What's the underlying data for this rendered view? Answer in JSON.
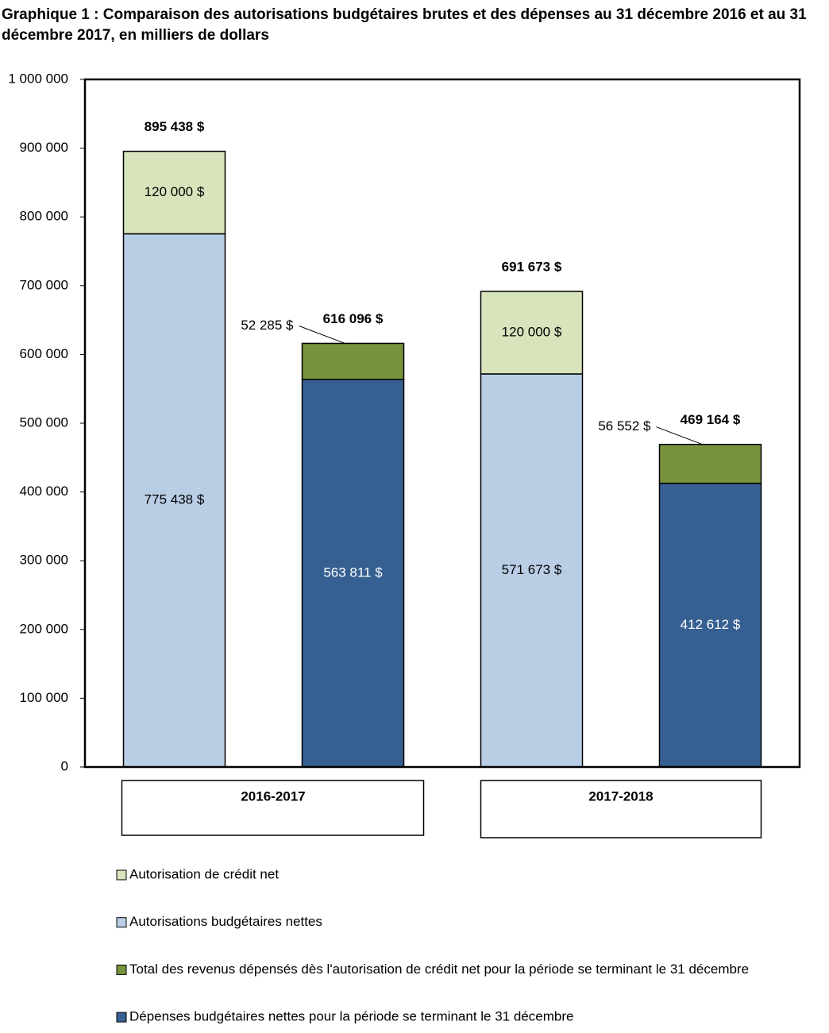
{
  "chart_data": {
    "type": "stacked-bar",
    "title": "Graphique 1 : Comparaison des autorisations budgétaires brutes et des dépenses au 31 décembre 2016 et au 31 décembre 2017, en milliers de dollars",
    "categories": [
      null,
      null,
      null,
      null
    ],
    "groups": [
      "2016-2017",
      "2017-2018"
    ],
    "series": [
      {
        "name": "Autorisation de crédit net",
        "color": "#d8e4bc",
        "values": [
          120000,
          null,
          120000,
          null
        ],
        "value_labels": [
          "120 000 $",
          null,
          "120 000 $",
          null
        ]
      },
      {
        "name": "Autorisations budgétaires nettes",
        "color": "#b9cde5",
        "values": [
          775438,
          null,
          571673,
          null
        ],
        "value_labels": [
          "775 438 $",
          null,
          "571 673 $",
          null
        ]
      },
      {
        "name": "Total des revenus dépensés dès l'autorisation de crédit net pour la période se terminant le 31 décembre",
        "color": "#77933c",
        "values": [
          null,
          52285,
          null,
          56552
        ],
        "value_labels": [
          null,
          "52 285 $",
          null,
          "56 552 $"
        ]
      },
      {
        "name": "Dépenses budgétaires nettes pour la période se terminant le 31 décembre",
        "color": "#376092",
        "values": [
          null,
          563811,
          null,
          412612
        ],
        "value_labels": [
          null,
          "563 811 $",
          null,
          "412 612 $"
        ]
      }
    ],
    "totals": [
      895438,
      616096,
      691673,
      469164
    ],
    "total_labels": [
      "895 438 $",
      "616 096 $",
      "691 673 $",
      "469 164 $"
    ],
    "ylim": [
      0,
      1000000
    ],
    "yticks": [
      0,
      {
        "value": 100000,
        "label": "100 000"
      },
      {
        "value": 200000,
        "label": "200 000"
      },
      {
        "value": 300000,
        "label": "300 000"
      },
      {
        "value": 400000,
        "label": "400 000"
      },
      {
        "value": 500000,
        "label": "500 000"
      },
      {
        "value": 600000,
        "label": "600 000"
      },
      {
        "value": 700000,
        "label": "700 000"
      },
      {
        "value": 800000,
        "label": "800 000"
      },
      {
        "value": 900000,
        "label": "900 000"
      },
      {
        "value": 1000000,
        "label": "1 000 000"
      }
    ],
    "grid": false,
    "legend": "bottom"
  }
}
